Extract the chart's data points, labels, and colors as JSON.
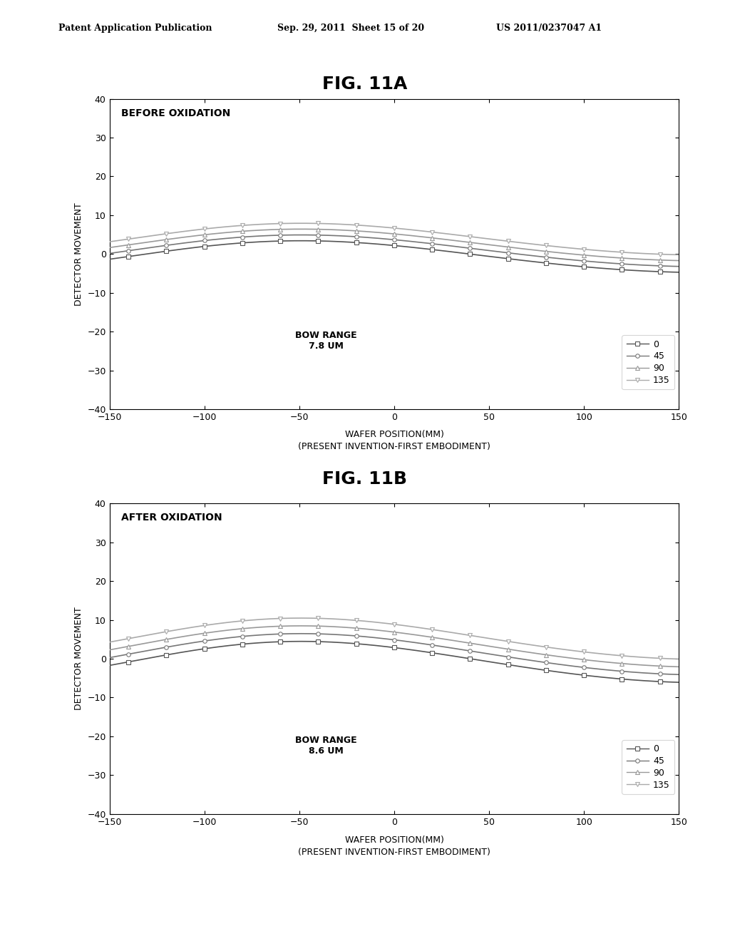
{
  "fig_title_a": "FIG. 11A",
  "fig_title_b": "FIG. 11B",
  "header_left": "Patent Application Publication",
  "header_mid": "Sep. 29, 2011  Sheet 15 of 20",
  "header_right": "US 2011/0237047 A1",
  "plot_a": {
    "title_text": "BEFORE OXIDATION",
    "bow_range": "BOW RANGE\n7.8 UM",
    "ylabel": "DETECTOR MOVEMENT",
    "xlabel_line1": "WAFER POSITION(MM)",
    "xlabel_line2": "(PRESENT INVENTION-FIRST EMBODIMENT)",
    "ylim": [
      -40,
      40
    ],
    "xlim": [
      -150,
      150
    ],
    "yticks": [
      -40,
      -30,
      -20,
      -10,
      0,
      10,
      20,
      30,
      40
    ],
    "xticks": [
      -150,
      -100,
      -50,
      0,
      50,
      100,
      150
    ],
    "legend_labels": [
      "0",
      "45",
      "90",
      "135"
    ],
    "curve_offsets": [
      0.0,
      1.5,
      3.0,
      4.5
    ],
    "curve_color": "#888888",
    "background": "#ffffff"
  },
  "plot_b": {
    "title_text": "AFTER OXIDATION",
    "bow_range": "BOW RANGE\n8.6 UM",
    "ylabel": "DETECTOR MOVEMENT",
    "xlabel_line1": "WAFER POSITION(MM)",
    "xlabel_line2": "(PRESENT INVENTION-FIRST EMBODIMENT)",
    "ylim": [
      -40,
      40
    ],
    "xlim": [
      -150,
      150
    ],
    "yticks": [
      -40,
      -30,
      -20,
      -10,
      0,
      10,
      20,
      30,
      40
    ],
    "xticks": [
      -150,
      -100,
      -50,
      0,
      50,
      100,
      150
    ],
    "legend_labels": [
      "0",
      "45",
      "90",
      "135"
    ],
    "curve_offsets": [
      0.0,
      2.0,
      4.0,
      6.0
    ],
    "curve_color": "#888888",
    "background": "#ffffff"
  }
}
